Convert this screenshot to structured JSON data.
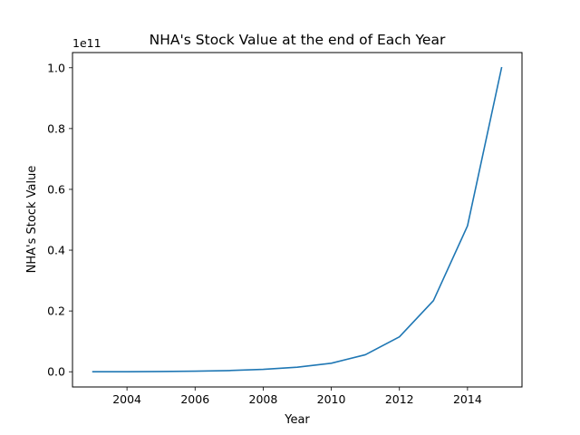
{
  "chart_data": {
    "type": "line",
    "title": "NHA's Stock Value at the end of Each Year",
    "xlabel": "Year",
    "ylabel": "NHA's Stock Value",
    "y_offset_text": "1e11",
    "x": [
      2003,
      2004,
      2005,
      2006,
      2007,
      2008,
      2009,
      2010,
      2011,
      2012,
      2013,
      2014,
      2015
    ],
    "series": [
      {
        "values": [
          0.0,
          0.0,
          0.001,
          0.002,
          0.004,
          0.008,
          0.015,
          0.028,
          0.056,
          0.115,
          0.234,
          0.48,
          1.0
        ],
        "color": "#1f77b4"
      }
    ],
    "xlim": [
      2002.4,
      2015.6
    ],
    "ylim": [
      -0.05,
      1.05
    ],
    "xticks": [
      2004,
      2006,
      2008,
      2010,
      2012,
      2014
    ],
    "xtick_labels": [
      "2004",
      "2006",
      "2008",
      "2010",
      "2012",
      "2014"
    ],
    "yticks": [
      0.0,
      0.2,
      0.4,
      0.6,
      0.8,
      1.0
    ],
    "ytick_labels": [
      "0.0",
      "0.2",
      "0.4",
      "0.6",
      "0.8",
      "1.0"
    ],
    "grid": false,
    "legend": "none"
  }
}
